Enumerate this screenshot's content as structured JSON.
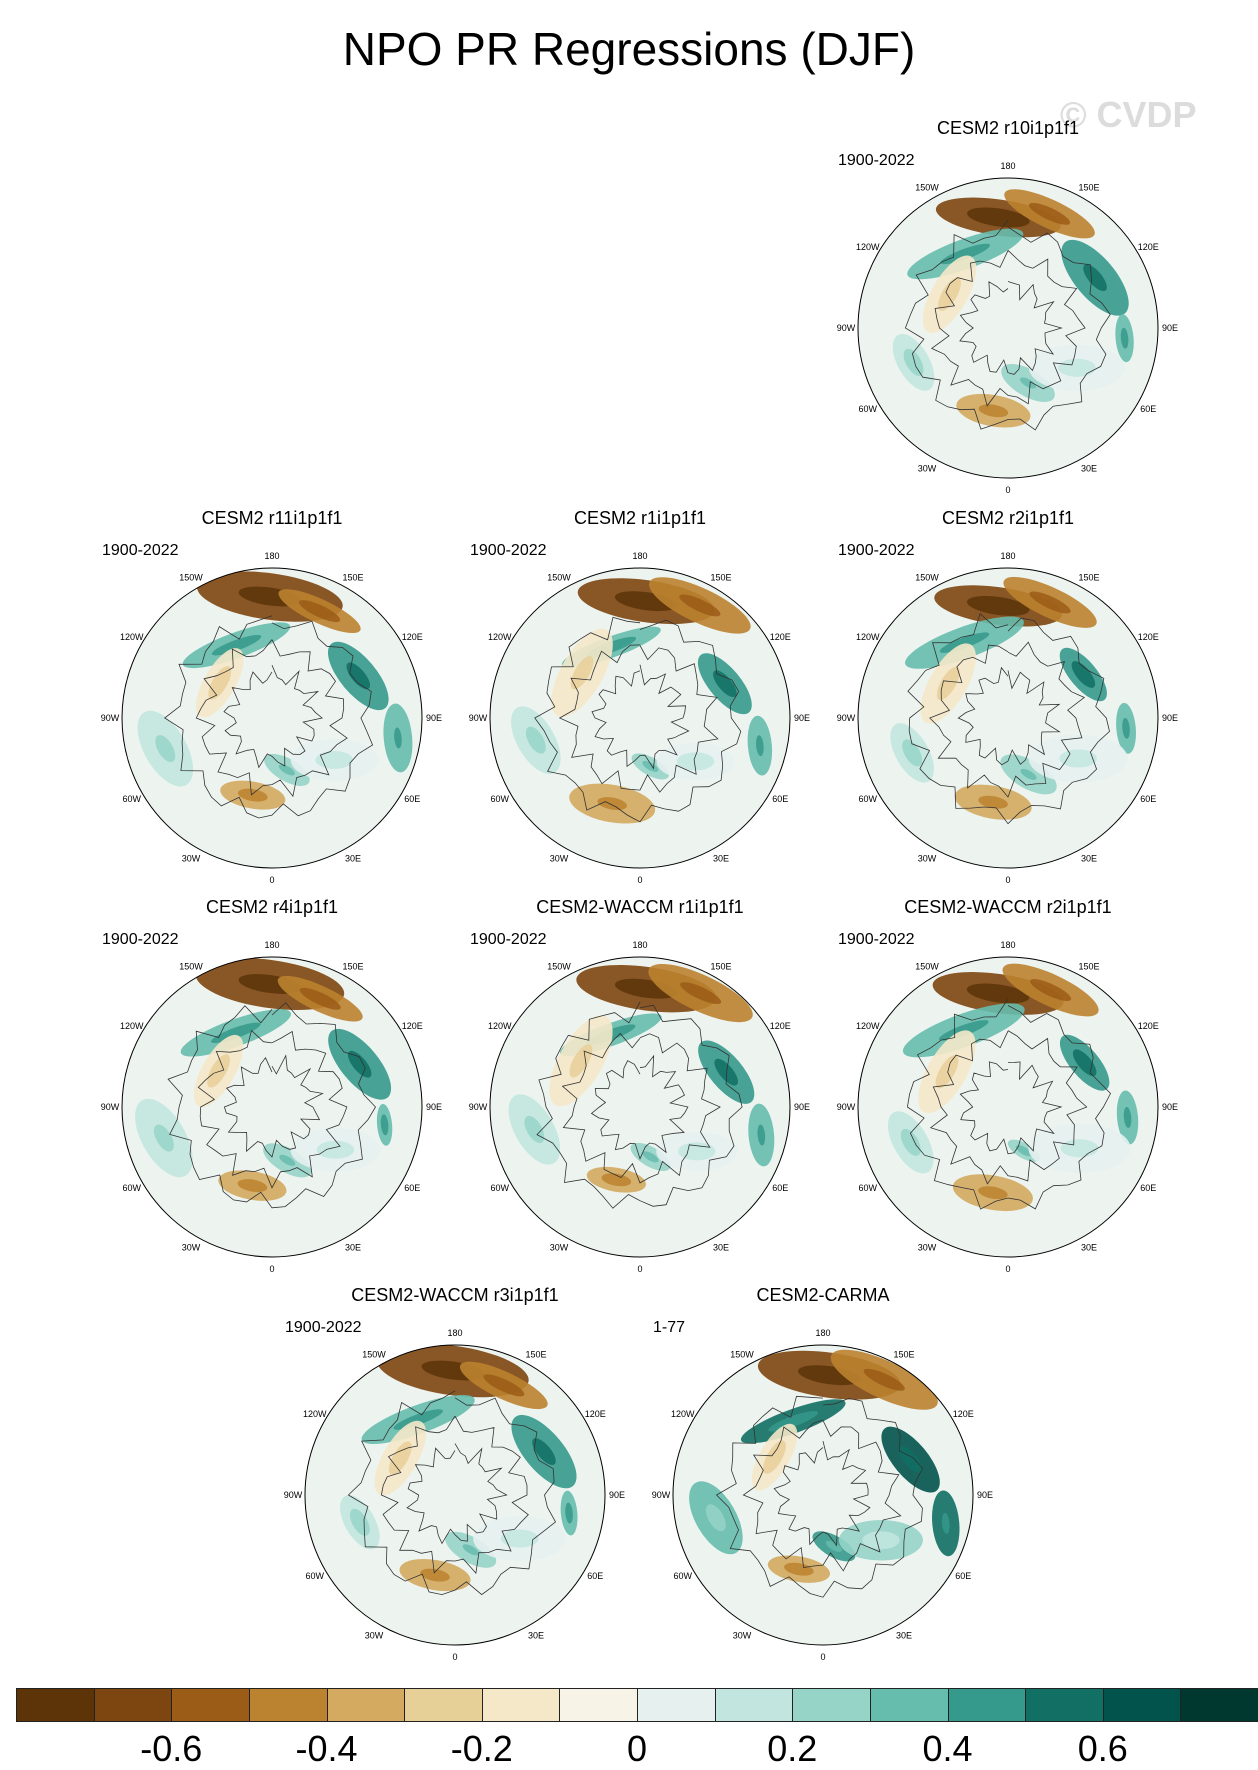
{
  "title": "NPO PR Regressions (DJF)",
  "watermark": "© CVDP",
  "lon_labels": [
    "180",
    "150E",
    "120E",
    "90E",
    "60E",
    "30E",
    "0",
    "30W",
    "60W",
    "90W",
    "120W",
    "150W"
  ],
  "panels": [
    {
      "name": "CESM2 r10i1p1f1",
      "period": "1900-2022"
    },
    {
      "name": "CESM2 r11i1p1f1",
      "period": "1900-2022"
    },
    {
      "name": "CESM2 r1i1p1f1",
      "period": "1900-2022"
    },
    {
      "name": "CESM2 r2i1p1f1",
      "period": "1900-2022"
    },
    {
      "name": "CESM2 r4i1p1f1",
      "period": "1900-2022"
    },
    {
      "name": "CESM2-WACCM r1i1p1f1",
      "period": "1900-2022"
    },
    {
      "name": "CESM2-WACCM r2i1p1f1",
      "period": "1900-2022"
    },
    {
      "name": "CESM2-WACCM r3i1p1f1",
      "period": "1900-2022"
    },
    {
      "name": "CESM2-CARMA",
      "period": "1-77"
    }
  ],
  "colorbar": {
    "colors": [
      "#5c3408",
      "#7d4510",
      "#9b5c18",
      "#bb822f",
      "#d3aa5f",
      "#e7cf98",
      "#f4e8c9",
      "#f7f3e6",
      "#e6f1ef",
      "#c2e6df",
      "#96d4c8",
      "#66bcad",
      "#35998b",
      "#116f63",
      "#01534b",
      "#00382f"
    ],
    "labels": [
      "-0.6",
      "-0.4",
      "-0.2",
      "0",
      "0.2",
      "0.4",
      "0.6"
    ],
    "label_positions": [
      1,
      3,
      5,
      7,
      9,
      11,
      13
    ]
  }
}
